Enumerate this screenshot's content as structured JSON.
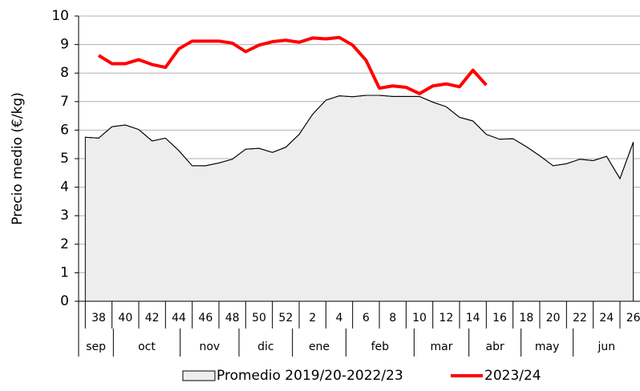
{
  "chart_data": {
    "type": "line",
    "y_label": "Precio medio (€/kg)",
    "categories": [
      null,
      "38",
      null,
      "40",
      null,
      "42",
      null,
      "44",
      null,
      "46",
      null,
      "48",
      null,
      "50",
      null,
      "52",
      null,
      "2",
      null,
      "4",
      null,
      "6",
      null,
      "8",
      null,
      "10",
      null,
      "12",
      null,
      "14",
      null,
      "16",
      null,
      "18",
      null,
      "20",
      null,
      "22",
      null,
      "24",
      null,
      "26"
    ],
    "months": [
      "sep",
      "oct",
      "nov",
      "dic",
      "ene",
      "feb",
      "mar",
      "abr",
      "may",
      "jun"
    ],
    "series": [
      {
        "name": "Promedio 2019/20-2022/23",
        "color": "#ededed",
        "style": "area",
        "values": [
          5.75,
          5.72,
          6.12,
          6.18,
          6.02,
          5.62,
          5.72,
          5.28,
          4.75,
          4.75,
          4.85,
          4.98,
          5.33,
          5.36,
          5.22,
          5.4,
          5.85,
          6.55,
          7.05,
          7.2,
          7.17,
          7.22,
          7.22,
          7.18,
          7.18,
          7.18,
          6.98,
          6.82,
          6.45,
          6.32,
          5.85,
          5.68,
          5.7,
          5.42,
          5.1,
          4.75,
          4.82,
          4.98,
          4.93,
          5.08,
          4.3,
          5.58
        ]
      },
      {
        "name": "2023/24",
        "color": "#ff0000",
        "style": "line",
        "values": [
          null,
          8.62,
          8.33,
          8.33,
          8.47,
          8.3,
          8.2,
          8.85,
          9.12,
          9.12,
          9.12,
          9.05,
          8.75,
          8.98,
          9.1,
          9.15,
          9.08,
          9.23,
          9.2,
          9.25,
          8.98,
          8.45,
          7.47,
          7.55,
          7.5,
          7.28,
          7.55,
          7.62,
          7.52,
          8.1,
          7.58,
          null,
          null,
          null,
          null,
          null,
          null,
          null,
          null,
          null,
          null,
          null
        ]
      }
    ],
    "ylim": [
      0,
      10
    ],
    "yticks": [
      0,
      1,
      2,
      3,
      4,
      5,
      6,
      7,
      8,
      9,
      10
    ],
    "grid": true
  }
}
